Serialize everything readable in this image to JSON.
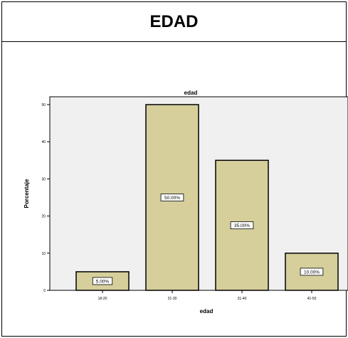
{
  "header": {
    "title": "EDAD"
  },
  "colors": {
    "bar_fill": "#d6cf9c",
    "bar_stroke": "#000000",
    "plot_bg": "#f0f0f0",
    "label_box": "#ffffff"
  },
  "chart_data": {
    "type": "bar",
    "title": "edad",
    "xlabel": "edad",
    "ylabel": "Porcentaje",
    "categories": [
      "18-20",
      "21-30",
      "31-40",
      "41-50"
    ],
    "values": [
      5,
      50,
      35,
      10
    ],
    "data_labels": [
      "5.00%",
      "50.00%",
      "35.00%",
      "10.00%"
    ],
    "ylim": [
      0,
      50
    ],
    "yticks": [
      0,
      10,
      20,
      30,
      40,
      50
    ],
    "grid": false,
    "legend": "none"
  }
}
